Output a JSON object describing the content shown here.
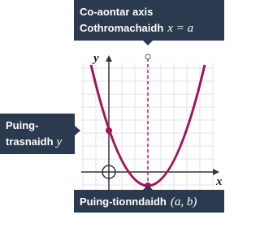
{
  "labels": {
    "axis_of_symmetry": {
      "line1": "Co-aontar axis",
      "line2_text": "Cothromachaidh",
      "line2_math": "x = a"
    },
    "y_intercept": {
      "line1": "Puing-",
      "line2_text": "trasnaidh",
      "line2_math": "y"
    },
    "turning_point": {
      "text": "Puing-tionndaidh",
      "math": "(a, b)"
    }
  },
  "axes": {
    "x": "x",
    "y": "y"
  }
}
